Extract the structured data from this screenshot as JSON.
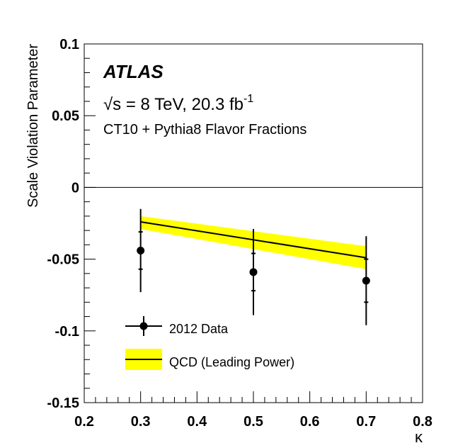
{
  "chart_data": {
    "type": "scatter",
    "title": "",
    "experiment": "ATLAS",
    "energy_prefix": "√s = 8 TeV, 20.3 fb",
    "energy_sup": "-1",
    "subtitle": "CT10 + Pythia8 Flavor Fractions",
    "xlabel": "κ",
    "ylabel": "Scale Violation Parameter",
    "xlim": [
      0.2,
      0.8
    ],
    "ylim": [
      -0.15,
      0.1
    ],
    "x_ticks": [
      0.2,
      0.3,
      0.4,
      0.5,
      0.6,
      0.7,
      0.8
    ],
    "x_tick_labels": [
      "0.2",
      "0.3",
      "0.4",
      "0.5",
      "0.6",
      "0.7",
      "0.8"
    ],
    "y_ticks": [
      -0.15,
      -0.1,
      -0.05,
      0,
      0.05,
      0.1
    ],
    "y_tick_labels": [
      "-0.15",
      "-0.1",
      "-0.05",
      "0",
      "0.05",
      "0.1"
    ],
    "zero_line": 0,
    "series": [
      {
        "name": "2012 Data",
        "kind": "points",
        "color": "#000000",
        "x": [
          0.3,
          0.5,
          0.7
        ],
        "y": [
          -0.044,
          -0.059,
          -0.065
        ],
        "err_inner": [
          0.013,
          0.013,
          0.015
        ],
        "err_outer": [
          0.029,
          0.03,
          0.031
        ]
      },
      {
        "name": "QCD (Leading Power)",
        "kind": "line+band",
        "line_color": "#000000",
        "band_color": "#ffff00",
        "x": [
          0.3,
          0.7
        ],
        "y": [
          -0.024,
          -0.049
        ],
        "band_low": [
          -0.029,
          -0.057
        ],
        "band_high": [
          -0.02,
          -0.041
        ]
      }
    ],
    "legend_position": "bottom-left"
  }
}
